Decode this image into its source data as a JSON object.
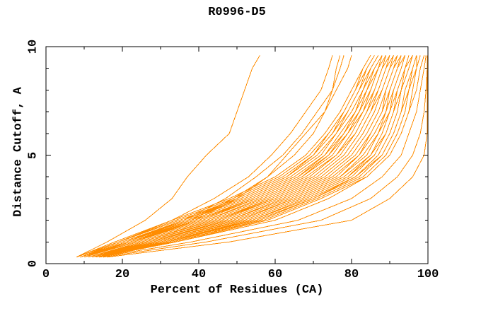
{
  "colors": {
    "background": "#ffffff",
    "axis": "#000000",
    "text": "#000000",
    "curve": "#ff8c00"
  },
  "chart_data": {
    "type": "line",
    "title": "R0996-D5",
    "xlabel": "Percent of Residues (CA)",
    "ylabel": "Distance Cutoff, A",
    "xlim": [
      0,
      100
    ],
    "ylim": [
      0,
      10
    ],
    "x_major_ticks": [
      0,
      20,
      40,
      60,
      80,
      100
    ],
    "x_minor_ticks": [
      10,
      30,
      50,
      70,
      90
    ],
    "y_major_ticks": [
      0,
      5,
      10
    ],
    "y_minor_ticks": [
      1,
      2,
      3,
      4,
      6,
      7,
      8,
      9
    ],
    "grid": false,
    "legend": "none",
    "series_color": "#ff8c00",
    "y_levels": [
      0.3,
      1,
      2,
      3,
      4,
      5,
      6,
      7,
      8,
      9,
      9.6
    ],
    "series": [
      [
        8,
        16,
        26,
        33,
        37,
        42,
        48,
        50,
        52,
        54,
        56
      ],
      [
        9,
        19,
        33,
        44,
        53,
        59,
        64,
        68,
        72,
        74,
        75
      ],
      [
        10,
        21,
        36,
        47,
        55,
        62,
        67,
        71,
        75,
        76,
        77
      ],
      [
        9,
        22,
        38,
        49,
        58,
        65,
        70,
        73,
        75,
        77,
        78
      ],
      [
        10,
        23,
        39,
        50,
        58,
        63,
        68,
        73,
        76,
        79,
        80
      ],
      [
        8,
        18,
        33,
        48,
        60,
        68,
        73,
        77,
        80,
        83,
        85
      ],
      [
        8,
        19,
        34,
        49,
        61,
        69,
        74,
        78,
        81,
        83,
        85
      ],
      [
        8,
        19,
        35,
        50,
        62,
        70,
        74,
        78,
        81,
        84,
        86
      ],
      [
        9,
        20,
        36,
        50,
        62,
        70,
        75,
        79,
        82,
        84,
        86
      ],
      [
        9,
        20,
        37,
        51,
        63,
        70,
        75,
        78,
        81,
        84,
        86
      ],
      [
        9,
        20,
        36,
        51,
        63,
        71,
        76,
        79,
        82,
        85,
        87
      ],
      [
        9,
        21,
        37,
        52,
        64,
        72,
        76,
        80,
        83,
        85,
        87
      ],
      [
        9,
        21,
        38,
        53,
        65,
        73,
        77,
        81,
        83,
        86,
        88
      ],
      [
        9,
        22,
        39,
        54,
        66,
        73,
        78,
        81,
        84,
        86,
        88
      ],
      [
        10,
        22,
        40,
        55,
        67,
        74,
        79,
        82,
        84,
        87,
        89
      ],
      [
        10,
        23,
        40,
        54,
        66,
        74,
        78,
        82,
        85,
        87,
        88
      ],
      [
        10,
        23,
        41,
        55,
        67,
        75,
        79,
        83,
        85,
        87,
        89
      ],
      [
        10,
        24,
        42,
        56,
        68,
        76,
        80,
        83,
        86,
        88,
        89
      ],
      [
        10,
        24,
        42,
        57,
        69,
        76,
        81,
        84,
        86,
        88,
        90
      ],
      [
        11,
        25,
        43,
        58,
        70,
        77,
        81,
        84,
        87,
        89,
        90
      ],
      [
        11,
        25,
        44,
        59,
        71,
        78,
        82,
        85,
        87,
        89,
        91
      ],
      [
        11,
        26,
        45,
        59,
        71,
        78,
        82,
        85,
        88,
        90,
        91
      ],
      [
        11,
        26,
        45,
        60,
        72,
        79,
        83,
        86,
        88,
        90,
        91
      ],
      [
        11,
        26,
        46,
        60,
        72,
        79,
        83,
        86,
        88,
        90,
        92
      ],
      [
        11,
        27,
        47,
        61,
        73,
        80,
        84,
        87,
        89,
        91,
        92
      ],
      [
        12,
        27,
        48,
        62,
        74,
        81,
        85,
        88,
        89,
        91,
        93
      ],
      [
        12,
        28,
        48,
        63,
        75,
        82,
        85,
        88,
        90,
        92,
        93
      ],
      [
        12,
        29,
        49,
        64,
        76,
        82,
        86,
        89,
        90,
        92,
        94
      ],
      [
        12,
        29,
        50,
        65,
        77,
        83,
        87,
        89,
        91,
        93,
        94
      ],
      [
        12,
        30,
        51,
        65,
        77,
        84,
        87,
        90,
        91,
        93,
        94
      ],
      [
        13,
        30,
        52,
        66,
        78,
        85,
        88,
        90,
        92,
        94,
        95
      ],
      [
        13,
        31,
        53,
        67,
        79,
        85,
        89,
        91,
        92,
        94,
        95
      ],
      [
        13,
        31,
        53,
        67,
        79,
        86,
        89,
        91,
        93,
        94,
        96
      ],
      [
        13,
        31,
        54,
        68,
        80,
        86,
        89,
        91,
        93,
        95,
        96
      ],
      [
        13,
        32,
        54,
        69,
        81,
        87,
        90,
        92,
        93,
        95,
        96
      ],
      [
        14,
        32,
        55,
        70,
        81,
        88,
        91,
        93,
        94,
        96,
        97
      ],
      [
        14,
        33,
        56,
        70,
        82,
        88,
        91,
        93,
        95,
        96,
        97
      ],
      [
        14,
        33,
        57,
        71,
        83,
        89,
        92,
        94,
        95,
        97,
        97
      ],
      [
        14,
        34,
        58,
        72,
        84,
        90,
        93,
        95,
        96,
        97,
        98
      ],
      [
        13,
        34,
        60,
        74,
        84,
        90,
        93,
        95,
        97,
        98,
        99
      ],
      [
        14,
        38,
        66,
        80,
        88,
        93,
        95,
        97,
        98,
        99,
        99.5
      ],
      [
        15,
        42,
        72,
        85,
        92,
        96,
        98,
        99,
        99.5,
        99.8,
        99.8
      ],
      [
        16,
        48,
        80,
        90,
        96,
        99,
        99.8,
        99.8,
        99.8,
        99.8,
        99.8
      ]
    ]
  }
}
